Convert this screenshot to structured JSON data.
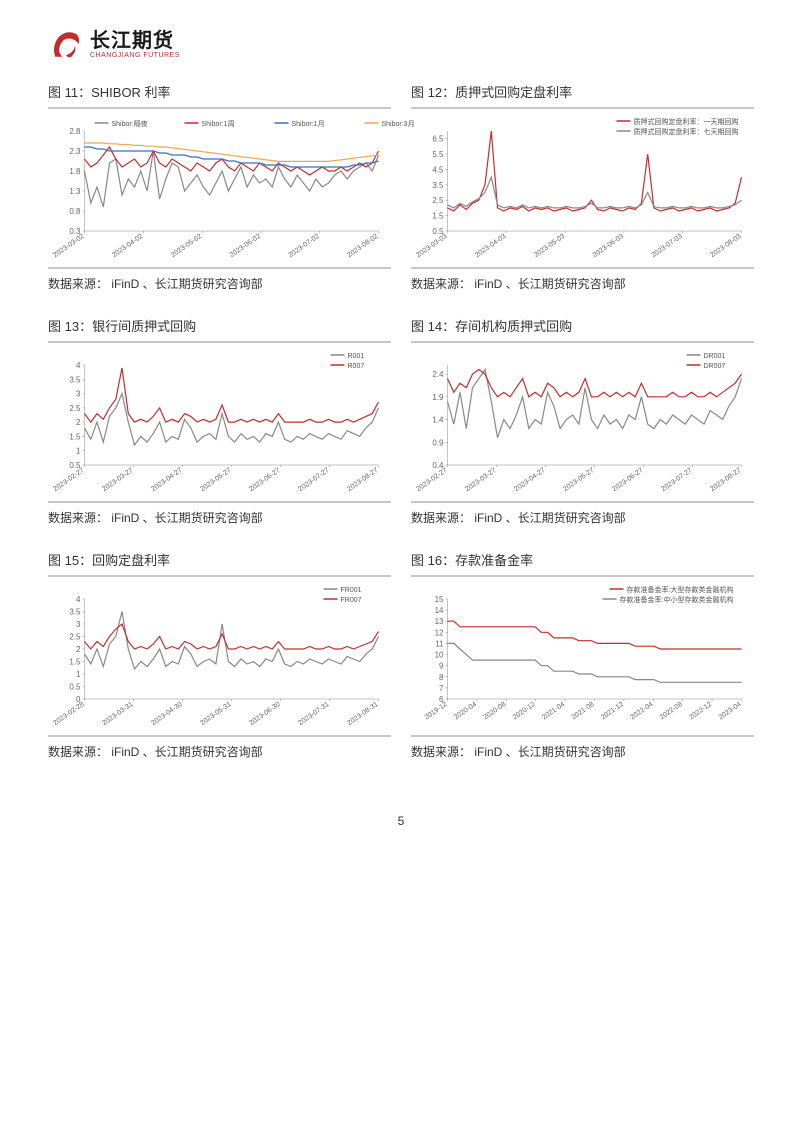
{
  "logo": {
    "cn": "长江期货",
    "en": "CHANGJIANG FUTURES"
  },
  "page_number": "5",
  "source_text": "数据来源： iFinD 、长江期货研究咨询部",
  "colors": {
    "red": "#c32d2d",
    "gray": "#888888",
    "blue": "#3b6fb5",
    "orange": "#e8a85a",
    "rule": "#c7c7c7",
    "axis": "#888888",
    "tick_font": "#666666"
  },
  "charts": [
    {
      "title": "图 11：SHIBOR 利率",
      "type": "line",
      "legend_pos": "top",
      "ylim": [
        0.3,
        2.8
      ],
      "yticks": [
        0.3,
        0.8,
        1.3,
        1.8,
        2.3,
        2.8
      ],
      "xticks": [
        "2023-03-02",
        "2023-04-02",
        "2023-05-02",
        "2023-06-02",
        "2023-07-02",
        "2023-08-02"
      ],
      "series": [
        {
          "name": "Shibor:隔夜",
          "color": "#888888",
          "data": [
            1.8,
            1.0,
            1.4,
            0.9,
            2.0,
            2.1,
            1.2,
            1.6,
            1.4,
            1.8,
            1.3,
            2.3,
            1.1,
            1.6,
            2.0,
            1.9,
            1.3,
            1.5,
            1.7,
            1.4,
            1.2,
            1.5,
            1.8,
            1.3,
            1.6,
            1.9,
            1.4,
            1.7,
            1.5,
            1.6,
            1.4,
            1.9,
            1.6,
            1.4,
            1.7,
            1.5,
            1.3,
            1.6,
            1.4,
            1.5,
            1.7,
            1.8,
            1.6,
            1.8,
            1.9,
            2.0,
            1.8,
            2.2
          ]
        },
        {
          "name": "Shibor:1周",
          "color": "#c32d2d",
          "data": [
            2.1,
            1.9,
            2.0,
            2.2,
            2.4,
            2.1,
            1.9,
            2.0,
            2.1,
            1.9,
            2.0,
            2.3,
            2.0,
            1.9,
            2.1,
            2.0,
            1.9,
            1.8,
            2.0,
            1.9,
            1.8,
            2.0,
            2.1,
            1.9,
            1.8,
            2.0,
            1.9,
            1.8,
            2.0,
            1.9,
            1.8,
            2.0,
            1.9,
            1.8,
            1.9,
            1.8,
            1.7,
            1.8,
            1.9,
            1.8,
            1.8,
            1.9,
            1.8,
            1.9,
            2.0,
            1.9,
            2.0,
            2.3
          ]
        },
        {
          "name": "Shibor:1月",
          "color": "#3b6fb5",
          "data": [
            2.4,
            2.4,
            2.35,
            2.35,
            2.3,
            2.3,
            2.3,
            2.3,
            2.3,
            2.3,
            2.3,
            2.3,
            2.25,
            2.25,
            2.2,
            2.2,
            2.2,
            2.15,
            2.15,
            2.1,
            2.1,
            2.1,
            2.1,
            2.05,
            2.05,
            2.0,
            2.0,
            2.0,
            2.0,
            1.95,
            1.95,
            1.95,
            1.95,
            1.9,
            1.9,
            1.9,
            1.9,
            1.9,
            1.9,
            1.9,
            1.9,
            1.9,
            1.9,
            1.95,
            1.95,
            2.0,
            2.0,
            2.05
          ]
        },
        {
          "name": "Shibor:3月",
          "color": "#e8a85a",
          "data": [
            2.5,
            2.5,
            2.5,
            2.5,
            2.48,
            2.48,
            2.46,
            2.46,
            2.44,
            2.44,
            2.42,
            2.42,
            2.4,
            2.4,
            2.38,
            2.36,
            2.34,
            2.32,
            2.3,
            2.28,
            2.26,
            2.24,
            2.22,
            2.2,
            2.18,
            2.16,
            2.14,
            2.12,
            2.1,
            2.08,
            2.06,
            2.04,
            2.04,
            2.04,
            2.04,
            2.04,
            2.04,
            2.04,
            2.04,
            2.04,
            2.06,
            2.08,
            2.1,
            2.12,
            2.14,
            2.16,
            2.18,
            2.2
          ]
        }
      ]
    },
    {
      "title": "图 12：质押式回购定盘利率",
      "type": "line",
      "legend_pos": "top-right",
      "ylim": [
        0.5,
        7.0
      ],
      "yticks": [
        0.5,
        1.5,
        2.5,
        3.5,
        4.5,
        5.5,
        6.5
      ],
      "xticks": [
        "2023-03-03",
        "2023-04-03",
        "2023-05-03",
        "2023-06-03",
        "2023-07-03",
        "2023-08-03"
      ],
      "series": [
        {
          "name": "质押式回购定盘利率：一天期回购",
          "color": "#c32d2d",
          "data": [
            2.0,
            1.8,
            2.2,
            1.9,
            2.3,
            2.5,
            3.5,
            7.0,
            2.0,
            1.8,
            2.0,
            1.9,
            2.1,
            1.8,
            2.0,
            1.9,
            2.0,
            1.8,
            1.9,
            2.0,
            1.8,
            1.9,
            2.0,
            2.5,
            1.9,
            1.8,
            2.0,
            1.9,
            1.8,
            2.0,
            1.9,
            2.3,
            5.5,
            2.0,
            1.8,
            1.9,
            2.0,
            1.8,
            1.9,
            2.0,
            1.8,
            1.9,
            2.0,
            1.8,
            1.9,
            2.0,
            2.3,
            4.0
          ]
        },
        {
          "name": "质押式回购定盘利率：七天期回购",
          "color": "#888888",
          "data": [
            2.2,
            2.0,
            2.3,
            2.1,
            2.4,
            2.6,
            3.0,
            4.0,
            2.2,
            2.0,
            2.1,
            2.0,
            2.2,
            2.0,
            2.1,
            2.0,
            2.1,
            2.0,
            2.0,
            2.1,
            2.0,
            2.0,
            2.1,
            2.3,
            2.0,
            2.0,
            2.1,
            2.0,
            2.0,
            2.1,
            2.0,
            2.2,
            3.0,
            2.1,
            2.0,
            2.0,
            2.1,
            2.0,
            2.0,
            2.1,
            2.0,
            2.0,
            2.1,
            2.0,
            2.0,
            2.1,
            2.2,
            2.5
          ]
        }
      ]
    },
    {
      "title": "图 13：银行间质押式回购",
      "type": "line",
      "legend_pos": "top-right",
      "ylim": [
        0.5,
        4.0
      ],
      "yticks": [
        0.5,
        1,
        1.5,
        2,
        2.5,
        3,
        3.5,
        4
      ],
      "xticks": [
        "2023-02-27",
        "2023-03-27",
        "2023-04-27",
        "2023-05-27",
        "2023-06-27",
        "2023-07-27",
        "2023-08-27"
      ],
      "series": [
        {
          "name": "R001",
          "color": "#888888",
          "data": [
            1.8,
            1.4,
            2.0,
            1.3,
            2.2,
            2.5,
            3.0,
            2.0,
            1.2,
            1.5,
            1.3,
            1.6,
            2.0,
            1.3,
            1.5,
            1.4,
            2.1,
            1.8,
            1.3,
            1.5,
            1.6,
            1.4,
            2.3,
            1.5,
            1.3,
            1.6,
            1.4,
            1.5,
            1.3,
            1.6,
            1.5,
            2.0,
            1.4,
            1.3,
            1.5,
            1.4,
            1.6,
            1.5,
            1.4,
            1.6,
            1.5,
            1.4,
            1.7,
            1.6,
            1.5,
            1.8,
            2.0,
            2.5
          ]
        },
        {
          "name": "R007",
          "color": "#c32d2d",
          "data": [
            2.3,
            2.0,
            2.3,
            2.1,
            2.5,
            2.8,
            3.9,
            2.3,
            2.0,
            2.1,
            2.0,
            2.2,
            2.5,
            2.0,
            2.1,
            2.0,
            2.3,
            2.2,
            2.0,
            2.1,
            2.0,
            2.1,
            2.6,
            2.0,
            2.0,
            2.1,
            2.0,
            2.1,
            2.0,
            2.1,
            2.0,
            2.3,
            2.0,
            2.0,
            2.0,
            2.0,
            2.1,
            2.0,
            2.0,
            2.1,
            2.0,
            2.0,
            2.1,
            2.0,
            2.1,
            2.2,
            2.3,
            2.7
          ]
        }
      ]
    },
    {
      "title": "图 14：存间机构质押式回购",
      "type": "line",
      "legend_pos": "top-right",
      "ylim": [
        0.4,
        2.6
      ],
      "yticks": [
        0.4,
        0.9,
        1.4,
        1.9,
        2.4
      ],
      "xticks": [
        "2023-02-27",
        "2023-03-27",
        "2023-04-27",
        "2023-05-27",
        "2023-06-27",
        "2023-07-27",
        "2023-08-27"
      ],
      "series": [
        {
          "name": "DR001",
          "color": "#888888",
          "data": [
            1.8,
            1.3,
            2.0,
            1.2,
            2.1,
            2.3,
            2.5,
            1.8,
            1.0,
            1.4,
            1.2,
            1.5,
            1.9,
            1.2,
            1.4,
            1.3,
            2.0,
            1.7,
            1.2,
            1.4,
            1.5,
            1.3,
            2.1,
            1.4,
            1.2,
            1.5,
            1.3,
            1.4,
            1.2,
            1.5,
            1.4,
            1.9,
            1.3,
            1.2,
            1.4,
            1.3,
            1.5,
            1.4,
            1.3,
            1.5,
            1.4,
            1.3,
            1.6,
            1.5,
            1.4,
            1.7,
            1.9,
            2.3
          ]
        },
        {
          "name": "DR007",
          "color": "#c32d2d",
          "data": [
            2.3,
            2.0,
            2.2,
            2.1,
            2.4,
            2.5,
            2.4,
            2.1,
            1.9,
            2.0,
            1.9,
            2.1,
            2.3,
            1.9,
            2.0,
            1.9,
            2.2,
            2.1,
            1.9,
            2.0,
            1.9,
            2.0,
            2.3,
            1.9,
            1.9,
            2.0,
            1.9,
            2.0,
            1.9,
            2.0,
            1.9,
            2.2,
            1.9,
            1.9,
            1.9,
            1.9,
            2.0,
            1.9,
            1.9,
            2.0,
            1.9,
            1.9,
            2.0,
            1.9,
            2.0,
            2.1,
            2.2,
            2.4
          ]
        }
      ]
    },
    {
      "title": "图 15：回购定盘利率",
      "type": "line",
      "legend_pos": "top-right",
      "ylim": [
        0.0,
        4.0
      ],
      "yticks": [
        0.0,
        0.5,
        1.0,
        1.5,
        2.0,
        2.5,
        3.0,
        3.5,
        4.0
      ],
      "xticks": [
        "2023-02-28",
        "2023-03-31",
        "2023-04-30",
        "2023-05-31",
        "2023-06-30",
        "2023-07-31",
        "2023-08-31"
      ],
      "series": [
        {
          "name": "FR001",
          "color": "#888888",
          "data": [
            1.8,
            1.4,
            2.0,
            1.3,
            2.2,
            2.5,
            3.5,
            2.0,
            1.2,
            1.5,
            1.3,
            1.6,
            2.0,
            1.3,
            1.5,
            1.4,
            2.1,
            1.8,
            1.3,
            1.5,
            1.6,
            1.4,
            3.0,
            1.5,
            1.3,
            1.6,
            1.4,
            1.5,
            1.3,
            1.6,
            1.5,
            2.0,
            1.4,
            1.3,
            1.5,
            1.4,
            1.6,
            1.5,
            1.4,
            1.6,
            1.5,
            1.4,
            1.7,
            1.6,
            1.5,
            1.8,
            2.0,
            2.5
          ]
        },
        {
          "name": "FR007",
          "color": "#c32d2d",
          "data": [
            2.3,
            2.0,
            2.3,
            2.1,
            2.5,
            2.8,
            3.0,
            2.3,
            2.0,
            2.1,
            2.0,
            2.2,
            2.5,
            2.0,
            2.1,
            2.0,
            2.3,
            2.2,
            2.0,
            2.1,
            2.0,
            2.1,
            2.6,
            2.0,
            2.0,
            2.1,
            2.0,
            2.1,
            2.0,
            2.1,
            2.0,
            2.3,
            2.0,
            2.0,
            2.0,
            2.0,
            2.1,
            2.0,
            2.0,
            2.1,
            2.0,
            2.0,
            2.1,
            2.0,
            2.1,
            2.2,
            2.3,
            2.7
          ]
        }
      ]
    },
    {
      "title": "图 16：存款准备金率",
      "type": "line",
      "legend_pos": "top-right",
      "ylim": [
        6,
        15
      ],
      "yticks": [
        6,
        7,
        8,
        9,
        10,
        11,
        12,
        13,
        14,
        15
      ],
      "xticks": [
        "2019-12",
        "2020-04",
        "2020-08",
        "2020-12",
        "2021-04",
        "2021-08",
        "2021-12",
        "2022-04",
        "2022-08",
        "2022-12",
        "2023-04"
      ],
      "series": [
        {
          "name": "存款准备金率:大型存款类金融机构",
          "color": "#c32d2d",
          "data": [
            13.0,
            13.0,
            12.5,
            12.5,
            12.5,
            12.5,
            12.5,
            12.5,
            12.5,
            12.5,
            12.5,
            12.5,
            12.5,
            12.5,
            12.5,
            12.0,
            12.0,
            11.5,
            11.5,
            11.5,
            11.5,
            11.25,
            11.25,
            11.25,
            11.0,
            11.0,
            11.0,
            11.0,
            11.0,
            11.0,
            10.75,
            10.75,
            10.75,
            10.75,
            10.5,
            10.5,
            10.5,
            10.5,
            10.5,
            10.5,
            10.5,
            10.5,
            10.5,
            10.5,
            10.5,
            10.5,
            10.5,
            10.5
          ]
        },
        {
          "name": "存款准备金率:中小型存款类金融机构",
          "color": "#888888",
          "data": [
            11.0,
            11.0,
            10.5,
            10.0,
            9.5,
            9.5,
            9.5,
            9.5,
            9.5,
            9.5,
            9.5,
            9.5,
            9.5,
            9.5,
            9.5,
            9.0,
            9.0,
            8.5,
            8.5,
            8.5,
            8.5,
            8.25,
            8.25,
            8.25,
            8.0,
            8.0,
            8.0,
            8.0,
            8.0,
            8.0,
            7.75,
            7.75,
            7.75,
            7.75,
            7.5,
            7.5,
            7.5,
            7.5,
            7.5,
            7.5,
            7.5,
            7.5,
            7.5,
            7.5,
            7.5,
            7.5,
            7.5,
            7.5
          ]
        }
      ]
    }
  ]
}
